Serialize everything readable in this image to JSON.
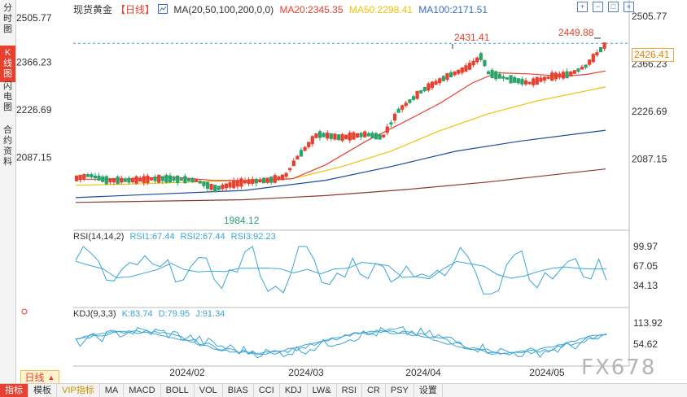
{
  "sidebar": {
    "tabs": [
      {
        "label": "分时图",
        "active": false
      },
      {
        "label": "K线图",
        "active": true
      },
      {
        "label": "闪电图",
        "active": false
      },
      {
        "label": "合约资料",
        "active": false
      }
    ]
  },
  "legend": {
    "name": "现货黄金",
    "period": "【日线】",
    "ma_settings": "MA(20,50,100,200,0,0)",
    "ma20": "MA20:2345.35",
    "ma50": "MA50:2298.41",
    "ma100": "MA100:2171.51"
  },
  "toolbar": {
    "icons": [
      "plus-box-icon",
      "minus-box-icon",
      "expand-box-icon",
      "close-box-icon"
    ]
  },
  "price_axis": {
    "ticks": [
      "2505.77",
      "2366.23",
      "2226.69",
      "2087.15"
    ]
  },
  "current_price": "2426.41",
  "annotations": {
    "high1": "2431.41",
    "high2": "2449.88",
    "low": "1984.12"
  },
  "rsi": {
    "title": "RSI(14,14,2)",
    "rsi1": "RSI1:67.44",
    "rsi2": "RSI2:67.44",
    "rsi3": "RSI3:92.23",
    "ticks": [
      "99.97",
      "67.05",
      "34.13"
    ]
  },
  "kdj": {
    "title": "KDJ(9,3,3)",
    "k": "K:83.74",
    "d": "D:79.95",
    "j": "J:91.34",
    "ticks": [
      "113.92",
      "54.62"
    ]
  },
  "time_axis": {
    "labels": [
      "2024/02",
      "2024/03",
      "2024/04",
      "2024/05"
    ]
  },
  "period_button": {
    "label": "日线",
    "arrow": "▲"
  },
  "bottom_tabs": [
    "指标",
    "模板",
    "VIP指标",
    "MA",
    "MACD",
    "BOLL",
    "VOL",
    "BIAS",
    "CCI",
    "KDJ",
    "LW&",
    "RSI",
    "CR",
    "PSY",
    "设置"
  ],
  "watermark": "FX678",
  "colors": {
    "up": "#e8402f",
    "down": "#2aa36b",
    "ma20": "#e8402f",
    "ma50": "#f0c20a",
    "ma100": "#1a4aa0",
    "ma200": "#8b3b2b",
    "rsi_line": "#3aa6d8",
    "accent": "#e8402f"
  }
}
